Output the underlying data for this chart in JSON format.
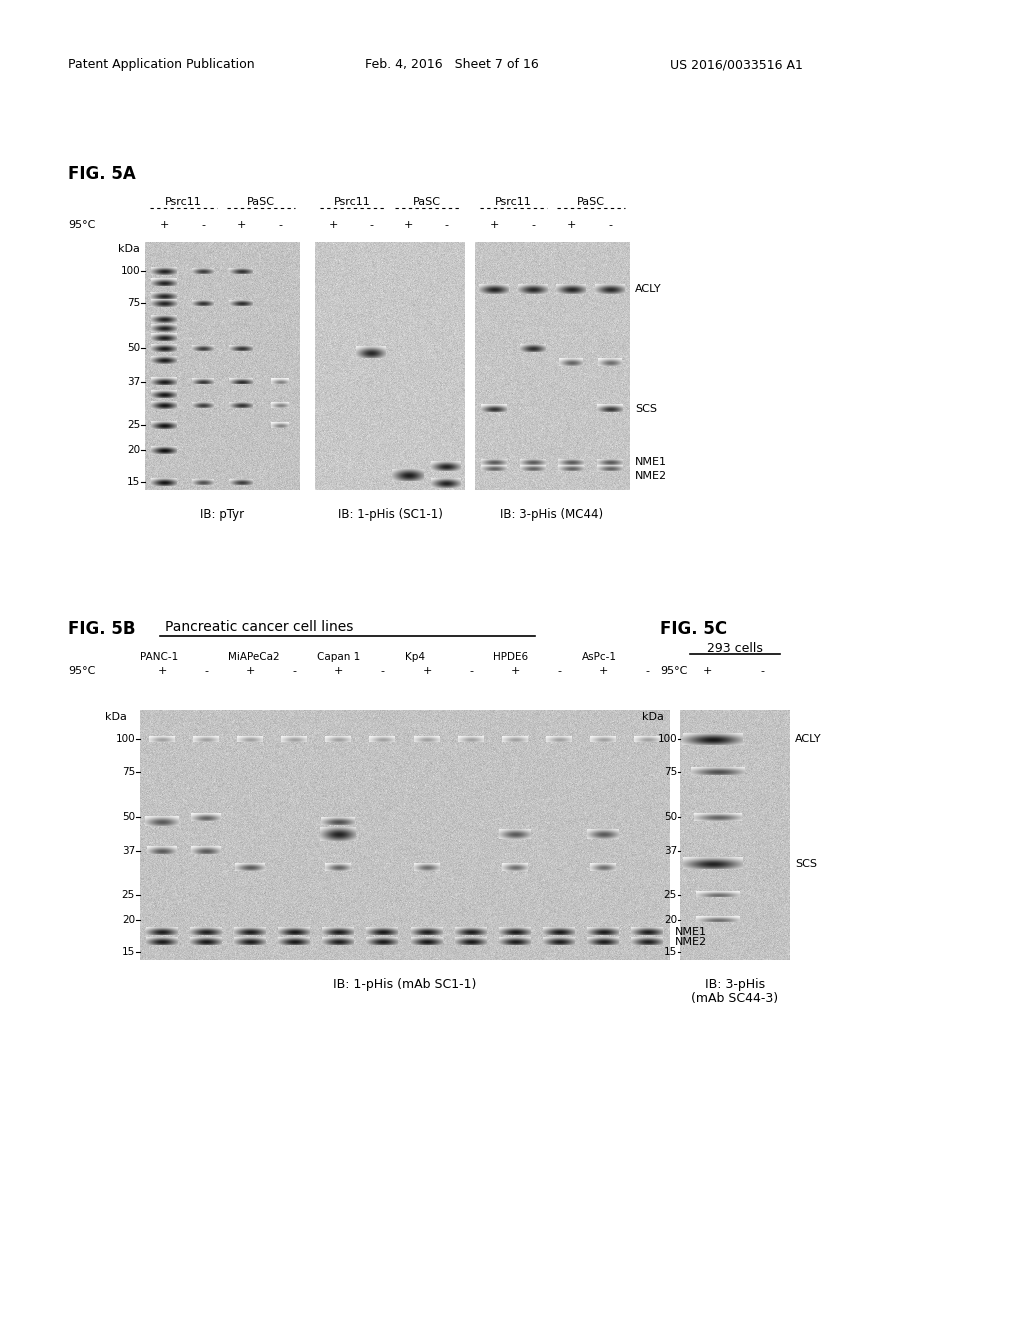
{
  "header_left": "Patent Application Publication",
  "header_mid": "Feb. 4, 2016   Sheet 7 of 16",
  "header_right": "US 2016/0033516 A1",
  "fig5a_label": "FIG. 5A",
  "fig5b_label": "FIG. 5B",
  "fig5c_label": "FIG. 5C",
  "fig5b_title": "Pancreatic cancer cell lines",
  "fig5c_title": "293 cells",
  "bg_color": "#ffffff",
  "gel_bg": 200,
  "band_dark": 30,
  "band_medium": 80,
  "band_light": 140,
  "kda_vals": [
    100,
    75,
    50,
    37,
    25,
    20,
    15
  ],
  "cell_lines_5b": [
    "PANC-1",
    "MiAPeCa2",
    "Capan 1",
    "Kp4",
    "HPDE6",
    "AsPc-1"
  ]
}
